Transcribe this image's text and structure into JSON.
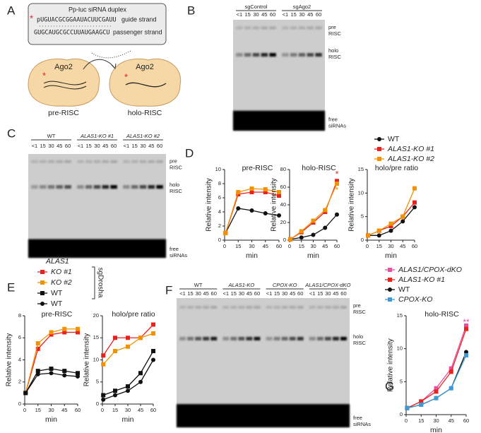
{
  "panel_labels": [
    "A",
    "B",
    "C",
    "D",
    "E",
    "F",
    "G"
  ],
  "diagram": {
    "box_title": "Pp-luc siRNA duplex",
    "guide": "pUGUACGCGGAAUACUUCGAUU",
    "passenger": "GUGCAUGCGCCUUAUGAAGCU",
    "guide_label": "guide strand",
    "passenger_label": "passenger strand",
    "protein": "Ago2",
    "left": "pre-RISC",
    "right": "holo-RISC"
  },
  "gels": [
    {
      "groups": [
        "sgControl",
        "sgAgo2"
      ],
      "lanes": [
        "<1",
        "15",
        "30",
        "45",
        "60"
      ],
      "side_labels": [
        [
          "pre",
          "RISC"
        ],
        [
          "holo",
          "RISC"
        ],
        [
          "free",
          "siRNAs"
        ]
      ]
    },
    {
      "groups": [
        "WT",
        "ALAS1-KO #1",
        "ALAS1-KO #2"
      ],
      "lanes": [
        "<1",
        "15",
        "30",
        "45",
        "60"
      ],
      "side_labels": [
        [
          "pre",
          "RISC"
        ],
        [
          "holo",
          "RISC"
        ],
        [
          "free",
          "siRNAs"
        ]
      ]
    },
    {
      "groups": [
        "WT",
        "ALAS1-KO",
        "CPOX-KO",
        "ALAS1/CPOX-dKO"
      ],
      "lanes": [
        "<1",
        "15",
        "30",
        "45",
        "60"
      ],
      "side_labels": [
        [
          "pre",
          "RISC"
        ],
        [
          "holo",
          "RISC"
        ],
        [
          "free",
          "siRNAs"
        ]
      ]
    }
  ],
  "legend_titles": {
    "e_group": "ALAS1",
    "e_bracket": "sgDrosha"
  },
  "chart_data": [
    {
      "type": "line",
      "title": "pre-RISC",
      "xlabel": "min",
      "ylabel": "Relative intensity",
      "x": [
        1,
        15,
        30,
        45,
        60
      ],
      "xlim": [
        0,
        60
      ],
      "xticks": [
        0,
        15,
        30,
        45,
        60
      ],
      "ylim": [
        0,
        10
      ],
      "yticks": [
        0,
        2,
        4,
        6,
        8,
        10
      ],
      "series": [
        {
          "name": "WT",
          "color": "#111111",
          "marker": "circle",
          "values": [
            1,
            4.5,
            4.2,
            3.8,
            3.5
          ]
        },
        {
          "name": "ALAS1-KO #1",
          "color": "#e8231e",
          "marker": "square",
          "values": [
            1,
            6.5,
            6.8,
            6.8,
            6.3
          ]
        },
        {
          "name": "ALAS1-KO #2",
          "color": "#f39200",
          "marker": "square",
          "values": [
            1,
            6.8,
            7.3,
            7.2,
            6.8
          ]
        }
      ]
    },
    {
      "type": "line",
      "title": "holo-RISC",
      "xlabel": "min",
      "ylabel": "Relative intensity",
      "x": [
        1,
        15,
        30,
        45,
        60
      ],
      "xlim": [
        0,
        60
      ],
      "xticks": [
        0,
        15,
        30,
        45,
        60
      ],
      "ylim": [
        0,
        80
      ],
      "yticks": [
        0,
        20,
        40,
        60,
        80
      ],
      "series": [
        {
          "color": "#111111",
          "marker": "circle",
          "values": [
            1,
            3,
            6,
            14,
            29
          ]
        },
        {
          "color": "#e8231e",
          "marker": "square",
          "values": [
            1,
            9,
            20,
            32,
            67
          ]
        },
        {
          "color": "#f39200",
          "marker": "square",
          "values": [
            1,
            10,
            22,
            34,
            64
          ]
        }
      ],
      "annotations": [
        {
          "text": "*",
          "color": "#e8231e"
        },
        {
          "text": "*",
          "color": "#f39200"
        }
      ]
    },
    {
      "type": "line",
      "title": "holo/pre ratio",
      "xlabel": "min",
      "ylabel": "Relative intensity",
      "x": [
        1,
        15,
        30,
        45,
        60
      ],
      "xlim": [
        0,
        60
      ],
      "xticks": [
        0,
        15,
        30,
        45,
        60
      ],
      "ylim": [
        0,
        15
      ],
      "yticks": [
        0,
        5,
        10,
        15
      ],
      "series": [
        {
          "color": "#111111",
          "marker": "circle",
          "values": [
            1,
            1,
            2,
            4,
            7
          ]
        },
        {
          "color": "#e8231e",
          "marker": "square",
          "values": [
            1,
            2,
            3,
            5,
            8
          ]
        },
        {
          "color": "#f39200",
          "marker": "square",
          "values": [
            1,
            2,
            3.5,
            5,
            11
          ]
        }
      ]
    },
    {
      "type": "line",
      "title": "pre-RISC",
      "xlabel": "min",
      "ylabel": "Relative intensity",
      "x": [
        1,
        15,
        30,
        45,
        60
      ],
      "xlim": [
        0,
        60
      ],
      "xticks": [
        0,
        15,
        30,
        45,
        60
      ],
      "ylim": [
        0,
        8
      ],
      "yticks": [
        0,
        2,
        4,
        6,
        8
      ],
      "series": [
        {
          "name": "KO #1",
          "color": "#e8231e",
          "marker": "square",
          "values": [
            1,
            5,
            6.3,
            6.5,
            6.5
          ]
        },
        {
          "name": "KO #2",
          "color": "#f39200",
          "marker": "square",
          "values": [
            1,
            5.5,
            6.5,
            6.8,
            6.8
          ]
        },
        {
          "name": "WT",
          "color": "#111111",
          "marker": "square",
          "values": [
            1,
            3,
            3.2,
            3,
            2.8
          ]
        },
        {
          "name": "WT",
          "color": "#111111",
          "marker": "circle",
          "values": [
            1,
            2.7,
            2.8,
            2.6,
            2.5
          ]
        }
      ]
    },
    {
      "type": "line",
      "title": "holo/pre ratio",
      "xlabel": "min",
      "ylabel": "Relative intensity",
      "x": [
        1,
        15,
        30,
        45,
        60
      ],
      "xlim": [
        0,
        60
      ],
      "xticks": [
        0,
        15,
        30,
        45,
        60
      ],
      "ylim": [
        0,
        20
      ],
      "yticks": [
        0,
        5,
        10,
        15,
        20
      ],
      "series": [
        {
          "color": "#e8231e",
          "marker": "square",
          "values": [
            11,
            15,
            15,
            15,
            18
          ]
        },
        {
          "color": "#f39200",
          "marker": "square",
          "values": [
            9,
            12,
            13,
            15,
            16
          ]
        },
        {
          "color": "#111111",
          "marker": "square",
          "values": [
            2,
            3,
            4,
            7,
            12
          ]
        },
        {
          "color": "#111111",
          "marker": "circle",
          "values": [
            1,
            2,
            3,
            5,
            10
          ]
        }
      ]
    },
    {
      "type": "line",
      "title": "holo-RISC",
      "xlabel": "min",
      "ylabel": "Relative intensity",
      "x": [
        1,
        15,
        30,
        45,
        60
      ],
      "xlim": [
        0,
        60
      ],
      "xticks": [
        0,
        15,
        30,
        45,
        60
      ],
      "ylim": [
        0,
        15
      ],
      "yticks": [
        0,
        5,
        10,
        15
      ],
      "series": [
        {
          "name": "ALAS1/CPOX-dKO",
          "color": "#e84fa0",
          "marker": "square",
          "values": [
            1,
            2,
            4,
            7,
            13.5
          ]
        },
        {
          "name": "ALAS1-KO #1",
          "color": "#e8231e",
          "marker": "square",
          "values": [
            1,
            2,
            3.5,
            6.5,
            13
          ]
        },
        {
          "name": "WT",
          "color": "#111111",
          "marker": "circle",
          "values": [
            1,
            1.5,
            2.5,
            4,
            9.5
          ]
        },
        {
          "name": "CPOX-KO",
          "color": "#3c9ad6",
          "marker": "square",
          "values": [
            1,
            1.5,
            2.5,
            4,
            9
          ]
        }
      ],
      "annotations": [
        {
          "text": "**",
          "color": "#e84fa0"
        }
      ]
    }
  ]
}
